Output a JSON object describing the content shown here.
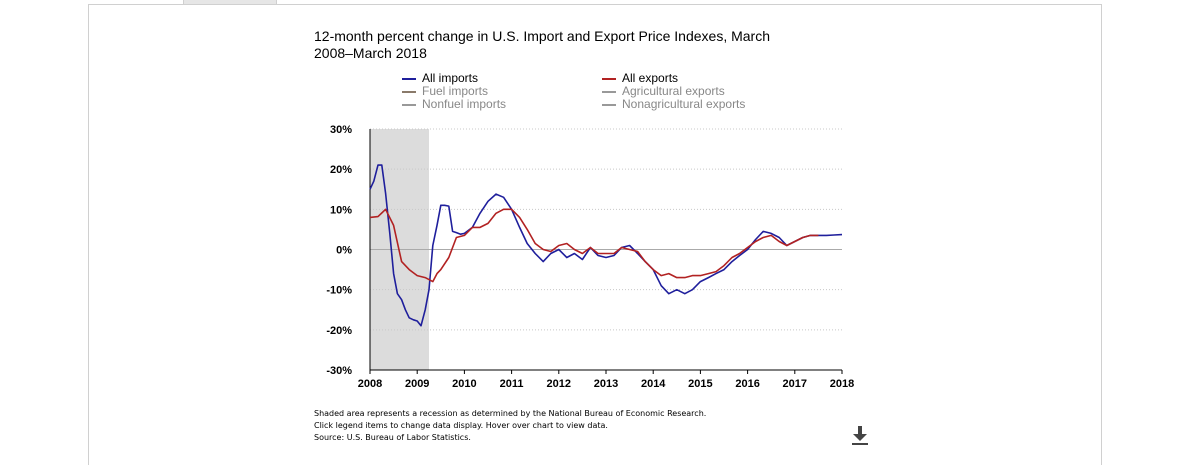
{
  "title": "12-month percent change in U.S. Import and Export Price Indexes, March 2008–March 2018",
  "legend": {
    "left": [
      {
        "label": "All imports",
        "color": "#1f1f9c",
        "active": true
      },
      {
        "label": "Fuel imports",
        "color": "#8a7a6a",
        "active": false
      },
      {
        "label": "Nonfuel imports",
        "color": "#999999",
        "active": false
      }
    ],
    "right": [
      {
        "label": "All exports",
        "color": "#b22222",
        "active": true
      },
      {
        "label": "Agricultural exports",
        "color": "#999999",
        "active": false
      },
      {
        "label": "Nonagricultural exports",
        "color": "#999999",
        "active": false
      }
    ]
  },
  "footnotes": [
    "Shaded area represents a recession as determined by the National Bureau of Economic Research.",
    "Click legend items to change data display. Hover over chart to view data.",
    "Source: U.S. Bureau of Labor Statistics."
  ],
  "icons": {
    "download": "download-icon"
  },
  "chart_data": {
    "type": "line",
    "x_ticks": [
      2008,
      2009,
      2010,
      2011,
      2012,
      2013,
      2014,
      2015,
      2016,
      2017,
      2018
    ],
    "y_ticks": [
      "30%",
      "20%",
      "10%",
      "0%",
      "-10%",
      "-20%",
      "-30%"
    ],
    "ylim": [
      -30,
      30
    ],
    "xlim": [
      2008.0,
      2018.0
    ],
    "recession": [
      2008.0,
      2009.25
    ],
    "series": [
      {
        "name": "All imports",
        "color": "#1f1f9c",
        "x": [
          2008.0,
          2008.08,
          2008.17,
          2008.25,
          2008.33,
          2008.42,
          2008.5,
          2008.58,
          2008.67,
          2008.75,
          2008.83,
          2008.92,
          2009.0,
          2009.08,
          2009.17,
          2009.25,
          2009.33,
          2009.42,
          2009.5,
          2009.58,
          2009.67,
          2009.75,
          2009.83,
          2009.92,
          2010.0,
          2010.17,
          2010.33,
          2010.5,
          2010.67,
          2010.83,
          2011.0,
          2011.17,
          2011.33,
          2011.5,
          2011.67,
          2011.83,
          2012.0,
          2012.17,
          2012.33,
          2012.5,
          2012.67,
          2012.83,
          2013.0,
          2013.17,
          2013.33,
          2013.5,
          2013.67,
          2013.83,
          2014.0,
          2014.17,
          2014.33,
          2014.5,
          2014.67,
          2014.83,
          2015.0,
          2015.17,
          2015.33,
          2015.5,
          2015.67,
          2015.83,
          2016.0,
          2016.17,
          2016.33,
          2016.5,
          2016.67,
          2016.83,
          2017.0,
          2017.17,
          2017.33,
          2017.5,
          2017.67,
          2017.83,
          2018.0
        ],
        "y": [
          15,
          17,
          21,
          21,
          14,
          4,
          -6,
          -11,
          -12.5,
          -15,
          -17,
          -17.5,
          -17.8,
          -19,
          -15,
          -10,
          1,
          6,
          11,
          11,
          10.8,
          4.5,
          4.2,
          3.8,
          4,
          5.5,
          9,
          12,
          13.8,
          13,
          10,
          5.5,
          1.5,
          -1,
          -3,
          -1,
          0,
          -2,
          -1,
          -2.5,
          0.5,
          -1.5,
          -2,
          -1.5,
          0.5,
          1,
          -1,
          -3,
          -5,
          -9,
          -11,
          -10,
          -11,
          -10,
          -8,
          -7,
          -6,
          -5,
          -3,
          -1.5,
          0,
          2.5,
          4.5,
          4,
          3,
          1,
          2,
          3,
          3.5,
          3.5,
          3.5,
          3.6,
          3.7
        ]
      },
      {
        "name": "All exports",
        "color": "#b22222",
        "x": [
          2008.0,
          2008.17,
          2008.33,
          2008.5,
          2008.67,
          2008.83,
          2009.0,
          2009.17,
          2009.33,
          2009.42,
          2009.5,
          2009.67,
          2009.83,
          2010.0,
          2010.17,
          2010.33,
          2010.5,
          2010.67,
          2010.83,
          2011.0,
          2011.17,
          2011.33,
          2011.5,
          2011.67,
          2011.83,
          2012.0,
          2012.17,
          2012.33,
          2012.5,
          2012.67,
          2012.83,
          2013.0,
          2013.17,
          2013.33,
          2013.5,
          2013.67,
          2013.83,
          2014.0,
          2014.17,
          2014.33,
          2014.5,
          2014.67,
          2014.83,
          2015.0,
          2015.17,
          2015.33,
          2015.5,
          2015.67,
          2015.83,
          2016.0,
          2016.17,
          2016.33,
          2016.5,
          2016.67,
          2016.83,
          2017.0,
          2017.17,
          2017.33,
          2017.5
        ],
        "y": [
          8,
          8.2,
          10,
          6,
          -3,
          -5,
          -6.5,
          -7,
          -8,
          -6,
          -5,
          -2,
          3,
          3.5,
          5.5,
          5.5,
          6.5,
          9,
          10,
          10,
          8,
          5,
          1.5,
          0,
          -0.5,
          1,
          1.5,
          0,
          -1,
          0.5,
          -1,
          -1,
          -1,
          0.5,
          0,
          -0.5,
          -3,
          -5,
          -6.5,
          -6,
          -7,
          -7,
          -6.5,
          -6.5,
          -6,
          -5.5,
          -4,
          -2,
          -1,
          0.5,
          2,
          3,
          3.5,
          2,
          1,
          2,
          3,
          3.5,
          3.5
        ]
      }
    ]
  }
}
